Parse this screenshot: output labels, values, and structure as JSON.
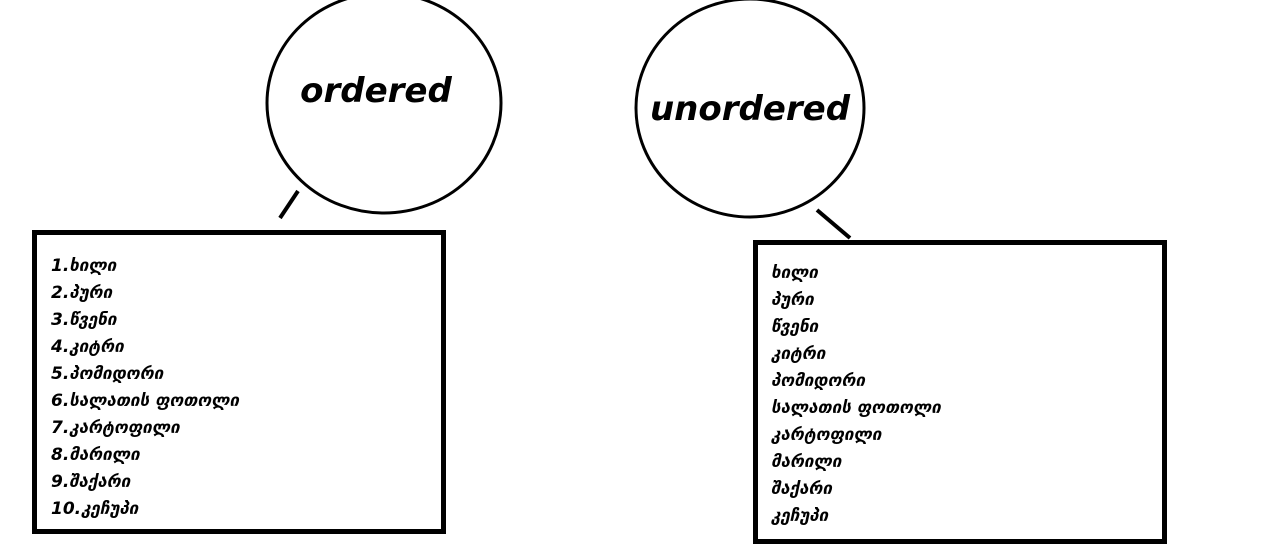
{
  "bubbles": {
    "ordered": "ordered",
    "unordered": "unordered"
  },
  "ordered_list": [
    "1.ხილი",
    "2.პური",
    "3.წვენი",
    "4.კიტრი",
    "5.პომიდორი",
    "6.სალათის ფოთოლი",
    "7.კარტოფილი",
    "8.მარილი",
    "9.შაქარი",
    "10.კეჩუპი"
  ],
  "unordered_list": [
    "ხილი",
    "პური",
    "წვენი",
    "კიტრი",
    "პომიდორი",
    "სალათის ფოთოლი",
    "კარტოფილი",
    "მარილი",
    "შაქარი",
    "კეჩუპი"
  ],
  "colors": {
    "stroke": "#000000",
    "background": "#ffffff"
  }
}
